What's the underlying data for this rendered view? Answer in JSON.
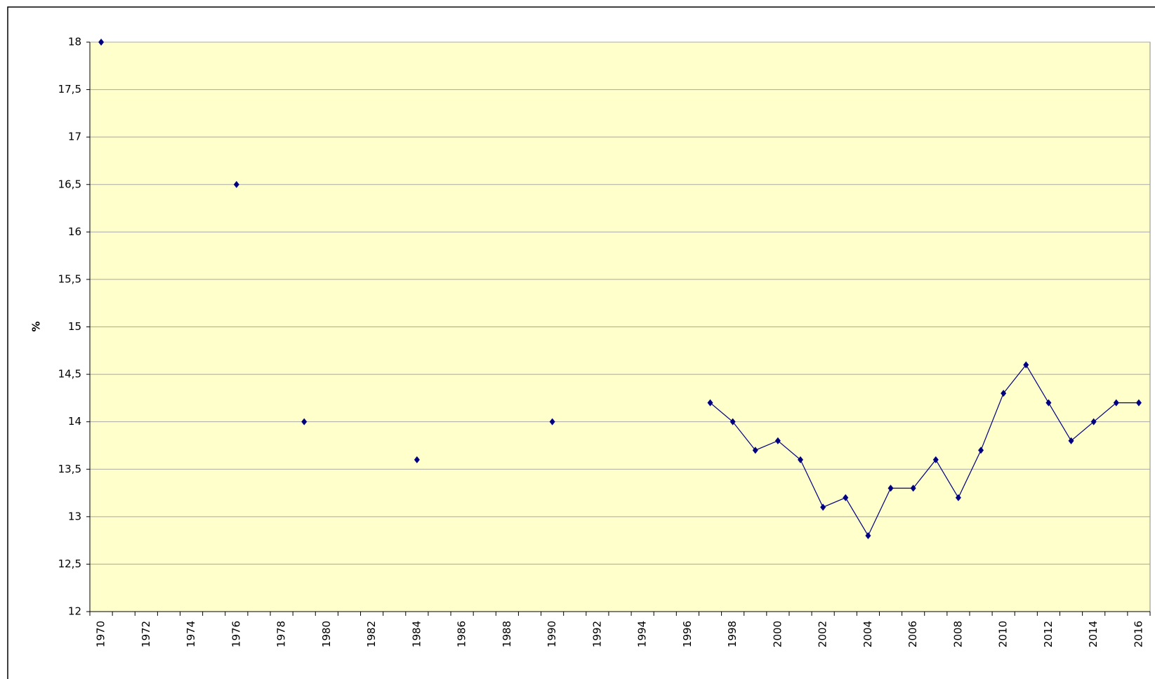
{
  "chart_data": {
    "type": "line",
    "y_label": "%",
    "categories": [
      1970,
      null,
      1972,
      null,
      1974,
      null,
      1976,
      null,
      1978,
      null,
      1980,
      null,
      1982,
      null,
      1984,
      null,
      1986,
      null,
      1988,
      null,
      1990,
      null,
      1992,
      null,
      1994,
      null,
      1996,
      null,
      1998,
      null,
      2000,
      null,
      2002,
      null,
      2004,
      null,
      2006,
      null,
      2008,
      null,
      2010,
      null,
      2012,
      null,
      2014,
      null,
      2016
    ],
    "series": [
      {
        "color": "#000080",
        "values": [
          18,
          null,
          null,
          null,
          null,
          null,
          16.5,
          null,
          null,
          14,
          null,
          null,
          null,
          null,
          13.6,
          null,
          null,
          null,
          null,
          null,
          14,
          null,
          null,
          null,
          null,
          null,
          null,
          14.2,
          14,
          13.7,
          13.8,
          13.6,
          13.1,
          13.2,
          12.8,
          13.3,
          13.3,
          13.6,
          13.2,
          13.7,
          14.3,
          14.6,
          14.2,
          13.8,
          14,
          14.2,
          14.2
        ]
      }
    ],
    "ylim": [
      12,
      18
    ],
    "yticks": [
      12,
      {
        "value": 12.5,
        "label": "12,5"
      },
      13,
      {
        "value": 13.5,
        "label": "13,5"
      },
      14,
      {
        "value": 14.5,
        "label": "14,5"
      },
      15,
      {
        "value": 15.5,
        "label": "15,5"
      },
      16,
      {
        "value": 16.5,
        "label": "16,5"
      },
      17,
      {
        "value": 17.5,
        "label": "17,5"
      },
      18
    ],
    "grid": true,
    "background": "#ffffcc"
  }
}
